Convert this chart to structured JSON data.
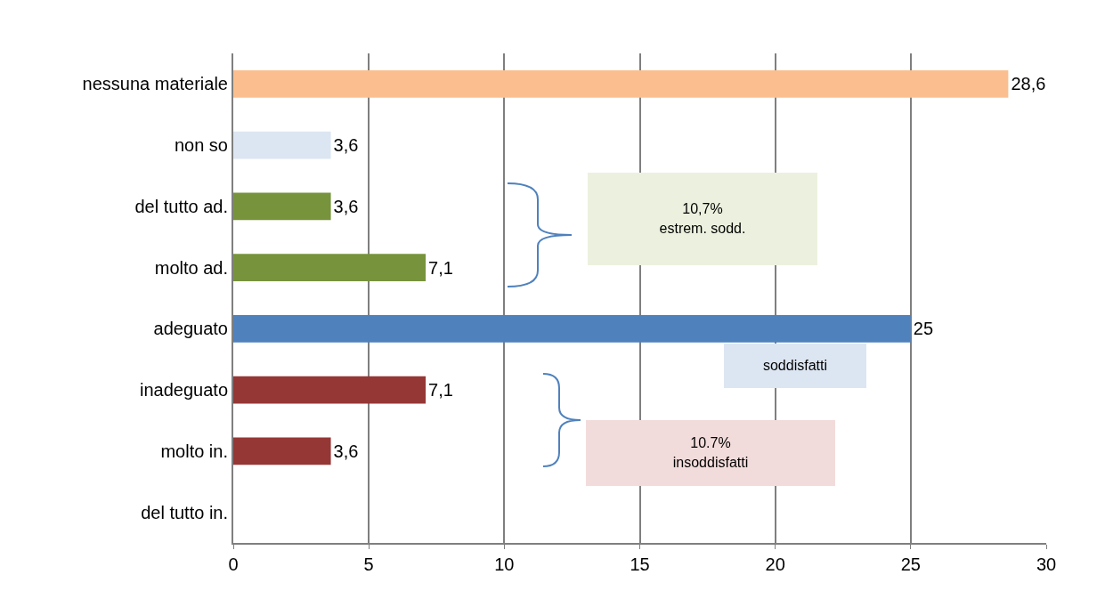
{
  "chart_data": {
    "type": "bar",
    "orientation": "horizontal",
    "categories": [
      "nessuna materiale",
      "non so",
      "del tutto ad.",
      "molto ad.",
      "adeguato",
      "inadeguato",
      "molto in.",
      "del tutto in."
    ],
    "values": [
      28.6,
      3.6,
      3.6,
      7.1,
      25,
      7.1,
      3.6,
      0
    ],
    "value_labels": [
      "28,6",
      "3,6",
      "3,6",
      "7,1",
      "25",
      "7,1",
      "3,6",
      null
    ],
    "colors": [
      "#fbbf8f",
      "#dce6f2",
      "#77933c",
      "#77933c",
      "#4f81bd",
      "#953735",
      "#953735",
      "#953735"
    ],
    "xlim": [
      0,
      30
    ],
    "xticks": [
      0,
      5,
      10,
      15,
      20,
      25,
      30
    ],
    "grid": "x",
    "annotations": [
      "10,7%\nestrem. sodd.",
      "soddisfatti",
      "10.7%\ninsoddisfatti"
    ]
  }
}
